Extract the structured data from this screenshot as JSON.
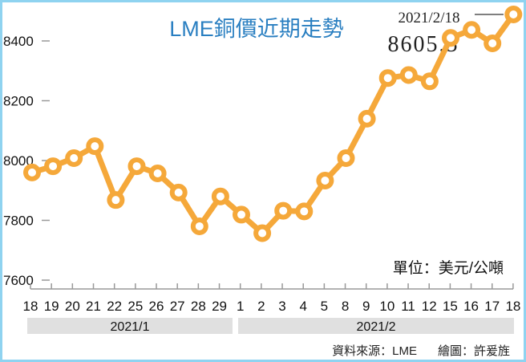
{
  "chart_data": {
    "type": "line",
    "title": "LME銅價近期走勢",
    "unit_label": "單位：美元/公噸",
    "source": "資料來源：LME",
    "credit": "繪圖：許爰旌",
    "annotation": {
      "date": "2021/2/18",
      "value": "8605.5"
    },
    "ylim": [
      7600,
      8500
    ],
    "yticks": [
      7600,
      7800,
      8000,
      8200,
      8400
    ],
    "grid": false,
    "categories": [
      "18",
      "19",
      "20",
      "21",
      "22",
      "25",
      "26",
      "27",
      "28",
      "29",
      "1",
      "2",
      "3",
      "4",
      "5",
      "8",
      "9",
      "10",
      "11",
      "12",
      "15",
      "16",
      "17",
      "18"
    ],
    "month_groups": [
      {
        "label": "2021/1",
        "count": 10
      },
      {
        "label": "2021/2",
        "count": 14
      }
    ],
    "values": [
      7960,
      7981,
      8008,
      8048,
      7868,
      7981,
      7957,
      7893,
      7780,
      7880,
      7819,
      7757,
      7832,
      7830,
      7933,
      8008,
      8140,
      8276,
      8286,
      8265,
      8410,
      8437,
      8392,
      8605.5
    ],
    "colors": {
      "line": "#f5a83a",
      "title": "#2a7fc1",
      "border": "#8fd3f0",
      "band": "#e0e0e0"
    }
  }
}
